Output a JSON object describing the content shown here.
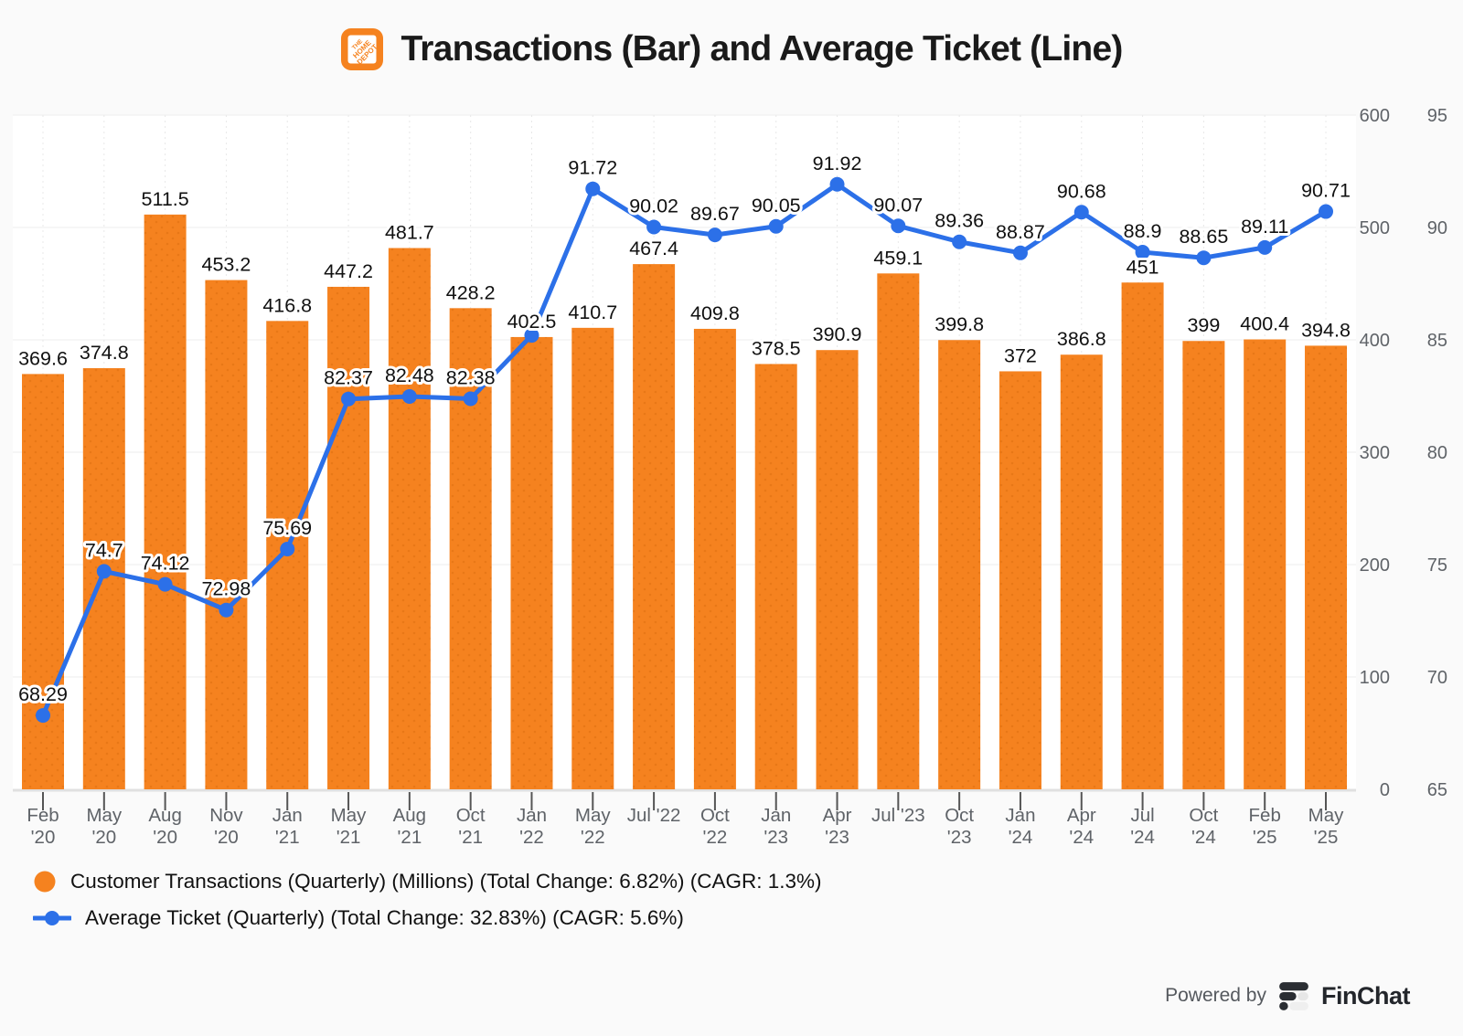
{
  "title": "Transactions (Bar) and Average Ticket (Line)",
  "title_icon": "home-depot-logo",
  "colors": {
    "bar": "#F5821F",
    "bar_dot": "#DB6E10",
    "line": "#2C70E8",
    "label": "#111111",
    "axis_text": "#5F6368",
    "grid_h": "#EDEDED",
    "grid_v": "#E8E8E8",
    "axis_line": "#E0E0E0",
    "tick": "#555555",
    "background": "#FAFAFA",
    "halo": "#FFFFFF"
  },
  "chart_data": {
    "type": "bar+line",
    "categories": [
      {
        "l1": "Feb",
        "l2": "'20"
      },
      {
        "l1": "May",
        "l2": "'20"
      },
      {
        "l1": "Aug",
        "l2": "'20"
      },
      {
        "l1": "Nov",
        "l2": "'20"
      },
      {
        "l1": "Jan",
        "l2": "'21"
      },
      {
        "l1": "May",
        "l2": "'21"
      },
      {
        "l1": "Aug",
        "l2": "'21"
      },
      {
        "l1": "Oct",
        "l2": "'21"
      },
      {
        "l1": "Jan",
        "l2": "'22"
      },
      {
        "l1": "May",
        "l2": "'22"
      },
      {
        "l1": "Jul '22",
        "l2": ""
      },
      {
        "l1": "Oct",
        "l2": "'22"
      },
      {
        "l1": "Jan",
        "l2": "'23"
      },
      {
        "l1": "Apr",
        "l2": "'23"
      },
      {
        "l1": "Jul '23",
        "l2": ""
      },
      {
        "l1": "Oct",
        "l2": "'23"
      },
      {
        "l1": "Jan",
        "l2": "'24"
      },
      {
        "l1": "Apr",
        "l2": "'24"
      },
      {
        "l1": "Jul",
        "l2": "'24"
      },
      {
        "l1": "Oct",
        "l2": "'24"
      },
      {
        "l1": "Feb",
        "l2": "'25"
      },
      {
        "l1": "May",
        "l2": "'25"
      }
    ],
    "series": [
      {
        "name": "Customer Transactions (Quarterly) (Millions) (Total Change: 6.82%) (CAGR: 1.3%)",
        "type": "bar",
        "axis": "bar_axis",
        "values": [
          369.6,
          374.8,
          511.5,
          453.2,
          416.8,
          447.2,
          481.7,
          428.2,
          402.5,
          410.7,
          467.4,
          409.8,
          378.5,
          390.9,
          459.1,
          399.8,
          372,
          386.8,
          451,
          399,
          400.4,
          394.8
        ],
        "labels": [
          "369.6",
          "374.8",
          "511.5",
          "453.2",
          "416.8",
          "447.2",
          "481.7",
          "428.2",
          "402.5",
          "410.7",
          "467.4",
          "409.8",
          "378.5",
          "390.9",
          "459.1",
          "399.8",
          "372",
          "386.8",
          "451",
          "399",
          "400.4",
          "394.8"
        ]
      },
      {
        "name": "Average Ticket (Quarterly) (Total Change: 32.83%) (CAGR: 5.6%)",
        "type": "line",
        "axis": "line_axis",
        "values": [
          68.29,
          74.7,
          74.12,
          72.98,
          75.69,
          82.37,
          82.48,
          82.38,
          85.2,
          91.72,
          90.02,
          89.67,
          90.05,
          91.92,
          90.07,
          89.36,
          88.87,
          90.68,
          88.9,
          88.65,
          89.11,
          90.71
        ],
        "labels": [
          "68.29",
          "74.7",
          "74.12",
          "72.98",
          "75.69",
          "82.37",
          "82.48",
          "82.38",
          "",
          "91.72",
          "90.02",
          "89.67",
          "90.05",
          "91.92",
          "90.07",
          "89.36",
          "88.87",
          "90.68",
          "88.9",
          "88.65",
          "89.11",
          "90.71"
        ]
      }
    ],
    "bar_axis": {
      "range": [
        0,
        600
      ],
      "ticks": [
        0,
        100,
        200,
        300,
        400,
        500,
        600
      ]
    },
    "line_axis": {
      "range": [
        65,
        95
      ],
      "ticks": [
        65,
        70,
        75,
        80,
        85,
        90,
        95
      ]
    },
    "grid": "on",
    "legend_position": "bottom-left"
  },
  "legend": {
    "items": [
      {
        "label": "Customer Transactions (Quarterly) (Millions) (Total Change: 6.82%) (CAGR: 1.3%)",
        "marker": "circle"
      },
      {
        "label": "Average Ticket (Quarterly) (Total Change: 32.83%) (CAGR: 5.6%)",
        "marker": "line-dot"
      }
    ]
  },
  "footer": {
    "powered_by": "Powered by",
    "brand": "FinChat"
  }
}
